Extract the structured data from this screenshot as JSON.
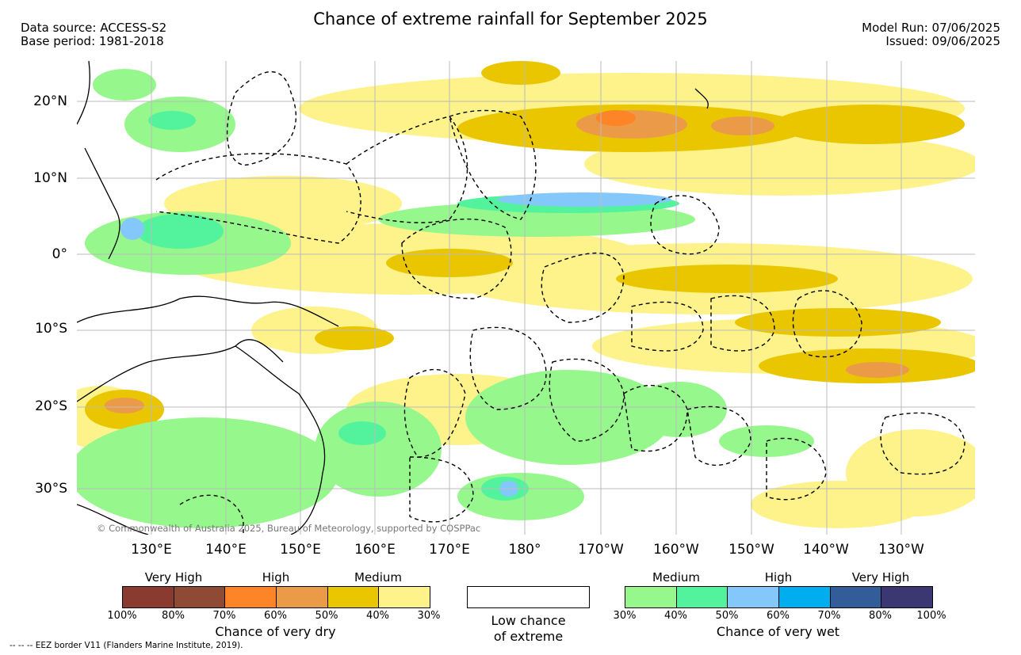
{
  "header": {
    "title": "Chance of extreme rainfall for September 2025",
    "data_source": "Data source: ACCESS-S2",
    "base_period": "Base period: 1981-2018",
    "model_run": "Model Run: 07/06/2025",
    "issued": "Issued: 09/06/2025"
  },
  "map": {
    "lat_labels": [
      "20°N",
      "10°N",
      "0°",
      "10°S",
      "20°S",
      "30°S"
    ],
    "lon_labels": [
      "130°E",
      "140°E",
      "150°E",
      "160°E",
      "170°E",
      "180°",
      "170°W",
      "160°W",
      "150°W",
      "140°W",
      "130°W"
    ],
    "copyright": "© Commonwealth of Australia 2025, Bureau of Meteorology, supported by COSPPac"
  },
  "legend": {
    "dry": {
      "categories": [
        "Very High",
        "High",
        "Medium"
      ],
      "colors": [
        "#8b3a2f",
        "#8e4a34",
        "#fd8427",
        "#eb9a48",
        "#e9c600",
        "#fdf38a"
      ],
      "ticks": [
        "100%",
        "80%",
        "70%",
        "60%",
        "50%",
        "40%",
        "30%"
      ],
      "title": "Chance of very dry"
    },
    "low": {
      "label_line1": "Low chance",
      "label_line2": "of extreme",
      "color": "#ffffff"
    },
    "wet": {
      "categories": [
        "Medium",
        "High",
        "Very High"
      ],
      "colors": [
        "#96f78c",
        "#52f39c",
        "#84c8fb",
        "#00aeef",
        "#335d98",
        "#3b3773"
      ],
      "ticks": [
        "30%",
        "40%",
        "50%",
        "60%",
        "70%",
        "80%",
        "100%"
      ],
      "title": "Chance of very wet"
    }
  },
  "footer": {
    "eez_note": "-- -- -- EEZ border V11 (Flanders Marine Institute, 2019)."
  }
}
